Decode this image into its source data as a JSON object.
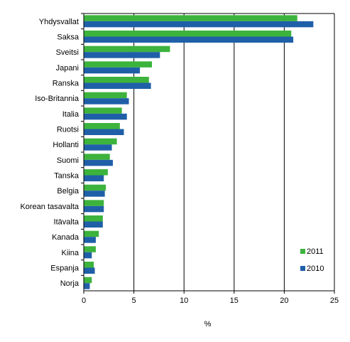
{
  "chart_data": {
    "type": "bar",
    "orientation": "horizontal",
    "categories": [
      "Yhdysvallat",
      "Saksa",
      "Sveitsi",
      "Japani",
      "Ranska",
      "Iso-Britannia",
      "Italia",
      "Ruotsi",
      "Hollanti",
      "Suomi",
      "Tanska",
      "Belgia",
      "Korean tasavalta",
      "Itävalta",
      "Kanada",
      "Kiina",
      "Espanja",
      "Norja"
    ],
    "series": [
      {
        "name": "2011",
        "color": "#3cb33c",
        "values": [
          21.3,
          20.7,
          8.6,
          6.8,
          6.5,
          4.3,
          3.8,
          3.6,
          3.3,
          2.6,
          2.4,
          2.2,
          2.0,
          1.9,
          1.5,
          1.2,
          1.0,
          0.8
        ]
      },
      {
        "name": "2010",
        "color": "#1f5fa8",
        "values": [
          22.9,
          20.9,
          7.6,
          5.6,
          6.7,
          4.5,
          4.3,
          4.0,
          2.8,
          2.9,
          2.0,
          2.1,
          2.0,
          1.9,
          1.2,
          0.8,
          1.1,
          0.6
        ]
      }
    ],
    "xlim": [
      0,
      25
    ],
    "xticks": [
      0,
      5,
      10,
      15,
      20,
      25
    ],
    "xlabel": "%",
    "ylabel": "",
    "title": "",
    "grid": "vertical",
    "legend_position": "bottom-right"
  }
}
